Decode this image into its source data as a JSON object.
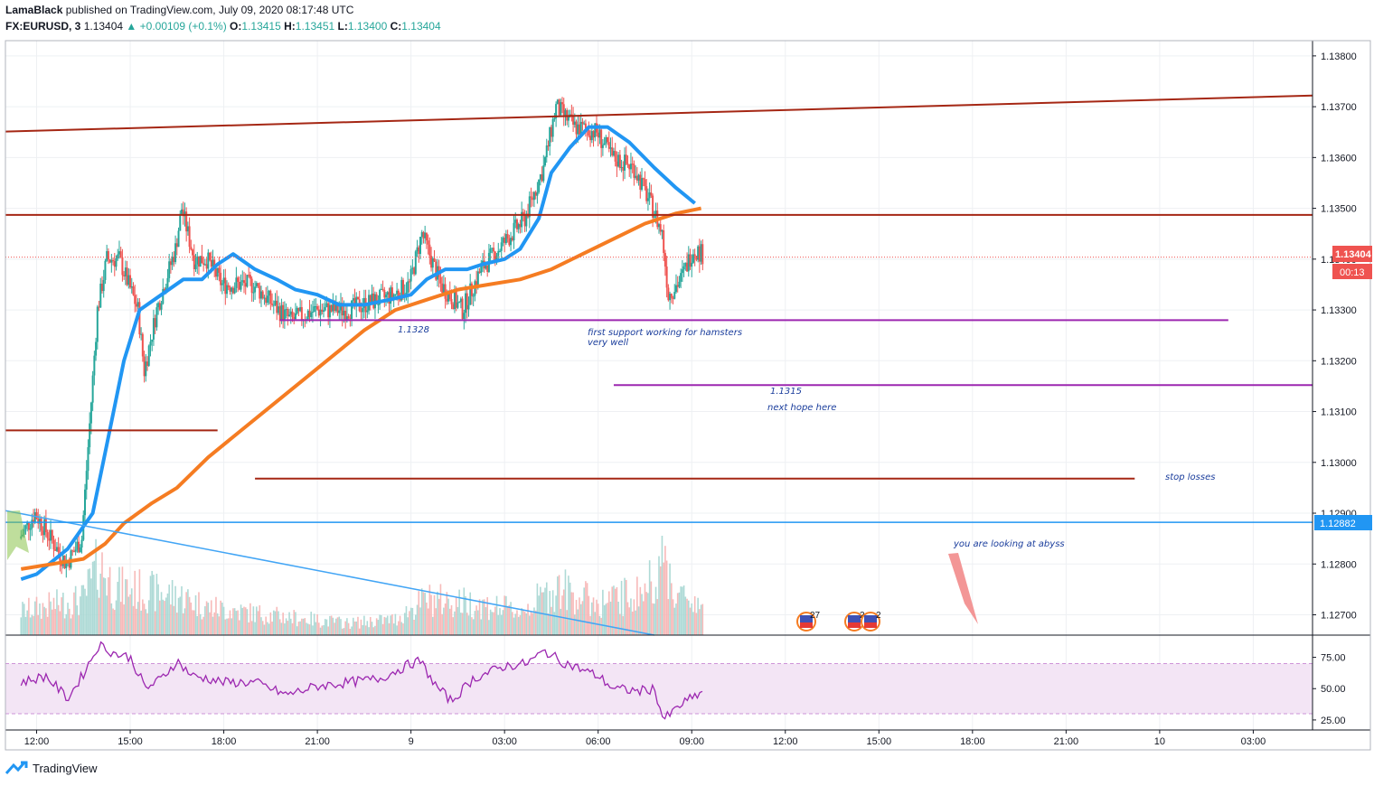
{
  "header": {
    "author": "LamaBlack",
    "published": "published on TradingView.com, July 09, 2020 08:17:48 UTC",
    "symbol": "FX:EURUSD, 3",
    "last": "1.13404",
    "change": "▲ +0.00109 (+0.1%)",
    "o_label": "O:",
    "o_value": "1.13415",
    "h_label": "H:",
    "h_value": "1.13451",
    "l_label": "L:",
    "l_value": "1.13400",
    "c_label": "C:",
    "c_value": "1.13404"
  },
  "footer": {
    "brand": "TradingView"
  },
  "colors": {
    "up": "#26a69a",
    "down": "#ef5350",
    "ma_fast": "#2196f3",
    "ma_slow": "#f57c22",
    "resistance": "#a52714",
    "support": "#9c27b0",
    "trend": "#42a5f5",
    "rsi": "#9c27b0"
  },
  "chart_data": {
    "type": "candlestick",
    "ylim": [
      1.1266,
      1.1383
    ],
    "y_ticks": [
      "1.13800",
      "1.13700",
      "1.13600",
      "1.13500",
      "1.13400",
      "1.13300",
      "1.13200",
      "1.13100",
      "1.13000",
      "1.12900",
      "1.12800",
      "1.12700"
    ],
    "x_ticks": [
      {
        "label": "12:00",
        "t": 0.5
      },
      {
        "label": "15:00",
        "t": 3.5
      },
      {
        "label": "18:00",
        "t": 6.5
      },
      {
        "label": "21:00",
        "t": 9.5
      },
      {
        "label": "9",
        "t": 12.5
      },
      {
        "label": "03:00",
        "t": 15.5
      },
      {
        "label": "06:00",
        "t": 18.5
      },
      {
        "label": "09:00",
        "t": 21.5
      },
      {
        "label": "12:00",
        "t": 24.5
      },
      {
        "label": "15:00",
        "t": 27.5
      },
      {
        "label": "18:00",
        "t": 30.5
      },
      {
        "label": "21:00",
        "t": 33.5
      },
      {
        "label": "10",
        "t": 36.5
      },
      {
        "label": "03:00",
        "t": 39.5
      }
    ],
    "price_path": [
      [
        0,
        1.1285
      ],
      [
        0.5,
        1.129
      ],
      [
        1.5,
        1.128
      ],
      [
        2.0,
        1.1285
      ],
      [
        2.5,
        1.133
      ],
      [
        2.8,
        1.134
      ],
      [
        3.2,
        1.134
      ],
      [
        3.8,
        1.133
      ],
      [
        4.0,
        1.1318
      ],
      [
        4.4,
        1.133
      ],
      [
        5.0,
        1.1342
      ],
      [
        5.2,
        1.135
      ],
      [
        5.6,
        1.134
      ],
      [
        6.0,
        1.134
      ],
      [
        6.5,
        1.1335
      ],
      [
        7.5,
        1.1335
      ],
      [
        8.3,
        1.133
      ],
      [
        8.7,
        1.1328
      ],
      [
        9.5,
        1.133
      ],
      [
        10.5,
        1.133
      ],
      [
        11.5,
        1.1332
      ],
      [
        12.0,
        1.1333
      ],
      [
        12.5,
        1.1335
      ],
      [
        12.9,
        1.1345
      ],
      [
        13.5,
        1.1335
      ],
      [
        14.2,
        1.133
      ],
      [
        14.8,
        1.1338
      ],
      [
        15.5,
        1.1343
      ],
      [
        16.2,
        1.1348
      ],
      [
        16.8,
        1.1358
      ],
      [
        17.2,
        1.137
      ],
      [
        17.8,
        1.1366
      ],
      [
        18.5,
        1.1365
      ],
      [
        19.0,
        1.136
      ],
      [
        19.7,
        1.1358
      ],
      [
        20.3,
        1.135
      ],
      [
        20.6,
        1.1345
      ],
      [
        20.8,
        1.1333
      ],
      [
        21.2,
        1.1336
      ],
      [
        21.6,
        1.1342
      ],
      [
        21.9,
        1.1341
      ]
    ],
    "volume_path": [
      [
        0,
        0.3
      ],
      [
        2.0,
        0.45
      ],
      [
        2.5,
        0.9
      ],
      [
        3.0,
        0.6
      ],
      [
        5.0,
        0.5
      ],
      [
        6.0,
        0.35
      ],
      [
        8.0,
        0.25
      ],
      [
        10.5,
        0.15
      ],
      [
        12.0,
        0.2
      ],
      [
        13.0,
        0.45
      ],
      [
        14.5,
        0.4
      ],
      [
        16.0,
        0.3
      ],
      [
        17.2,
        0.6
      ],
      [
        18.5,
        0.4
      ],
      [
        20.0,
        0.55
      ],
      [
        20.6,
        1.0
      ],
      [
        21.0,
        0.5
      ],
      [
        21.9,
        0.4
      ]
    ],
    "series": [
      {
        "name": "MA fast",
        "points": [
          [
            0,
            1.1277
          ],
          [
            0.5,
            1.1278
          ],
          [
            1.5,
            1.1283
          ],
          [
            2.3,
            1.129
          ],
          [
            2.8,
            1.1305
          ],
          [
            3.3,
            1.132
          ],
          [
            3.8,
            1.133
          ],
          [
            4.5,
            1.1333
          ],
          [
            5.2,
            1.1336
          ],
          [
            5.8,
            1.1336
          ],
          [
            6.3,
            1.1339
          ],
          [
            6.8,
            1.1341
          ],
          [
            7.5,
            1.1338
          ],
          [
            8.2,
            1.1336
          ],
          [
            8.8,
            1.1334
          ],
          [
            9.5,
            1.1333
          ],
          [
            10.2,
            1.1331
          ],
          [
            11.0,
            1.1331
          ],
          [
            11.8,
            1.1332
          ],
          [
            12.5,
            1.1333
          ],
          [
            13.0,
            1.1336
          ],
          [
            13.6,
            1.1338
          ],
          [
            14.3,
            1.1338
          ],
          [
            14.8,
            1.1339
          ],
          [
            15.5,
            1.134
          ],
          [
            16.0,
            1.1342
          ],
          [
            16.6,
            1.1348
          ],
          [
            17.0,
            1.1357
          ],
          [
            17.6,
            1.1362
          ],
          [
            18.2,
            1.1366
          ],
          [
            18.8,
            1.1366
          ],
          [
            19.5,
            1.1363
          ],
          [
            20.3,
            1.1358
          ],
          [
            21.0,
            1.1354
          ],
          [
            21.6,
            1.1351
          ]
        ]
      },
      {
        "name": "MA slow",
        "points": [
          [
            0,
            1.1279
          ],
          [
            1.0,
            1.128
          ],
          [
            2.0,
            1.1281
          ],
          [
            2.7,
            1.1284
          ],
          [
            3.3,
            1.1288
          ],
          [
            4.2,
            1.1292
          ],
          [
            5.0,
            1.1295
          ],
          [
            6.0,
            1.1301
          ],
          [
            7.0,
            1.1306
          ],
          [
            8.0,
            1.1311
          ],
          [
            9.0,
            1.1316
          ],
          [
            10.0,
            1.1321
          ],
          [
            11.0,
            1.1326
          ],
          [
            12.0,
            1.133
          ],
          [
            13.0,
            1.1332
          ],
          [
            14.0,
            1.1334
          ],
          [
            15.0,
            1.1335
          ],
          [
            16.0,
            1.1336
          ],
          [
            17.0,
            1.1338
          ],
          [
            18.0,
            1.1341
          ],
          [
            19.0,
            1.1344
          ],
          [
            20.0,
            1.1347
          ],
          [
            21.0,
            1.1349
          ],
          [
            21.8,
            1.135
          ]
        ]
      }
    ],
    "lines": [
      {
        "name": "channel-top",
        "t1": -0.5,
        "p1": 1.13651,
        "t2": 41.4,
        "p2": 1.13722
      },
      {
        "name": "resistance-1135",
        "t1": -0.5,
        "p1": 1.13487,
        "t2": 41.4,
        "p2": 1.13487
      },
      {
        "name": "resistance-low-left",
        "t1": -0.5,
        "p1": 1.13063,
        "t2": 6.3,
        "p2": 1.13063
      },
      {
        "name": "stop-loss-line",
        "t1": 7.5,
        "p1": 1.12968,
        "t2": 35.7,
        "p2": 1.12968
      },
      {
        "name": "support-11328",
        "t1": 8.3,
        "p1": 1.1328,
        "t2": 38.7,
        "p2": 1.1328
      },
      {
        "name": "support-11315",
        "t1": 19.0,
        "p1": 1.13152,
        "t2": 41.4,
        "p2": 1.13152
      },
      {
        "name": "descending-trend",
        "t1": -0.5,
        "p1": 1.12905,
        "t2": 20.3,
        "p2": 1.1266
      }
    ],
    "annotations": [
      "1.1328",
      "first support working for hamsters",
      "very well",
      "1.1315",
      "next hope here",
      "stop losses",
      "you are looking at abyss"
    ],
    "price_labels": {
      "current": "1.13404",
      "countdown": "00:13",
      "horizontal": "1.12882"
    },
    "events": [
      "27",
      "2",
      "2"
    ],
    "rsi": {
      "ylim": [
        17,
        92
      ],
      "y_ticks": [
        "75.00",
        "50.00",
        "25.00"
      ],
      "band": [
        30,
        70
      ],
      "path": [
        [
          0,
          55
        ],
        [
          0.8,
          60
        ],
        [
          1.5,
          42
        ],
        [
          2.0,
          62
        ],
        [
          2.5,
          85
        ],
        [
          3.0,
          78
        ],
        [
          3.5,
          75
        ],
        [
          4.0,
          50
        ],
        [
          4.5,
          58
        ],
        [
          5.0,
          72
        ],
        [
          5.5,
          60
        ],
        [
          6.0,
          58
        ],
        [
          6.5,
          55
        ],
        [
          7.5,
          55
        ],
        [
          8.0,
          50
        ],
        [
          8.5,
          45
        ],
        [
          9.5,
          52
        ],
        [
          10.5,
          55
        ],
        [
          11.5,
          58
        ],
        [
          12.5,
          70
        ],
        [
          12.8,
          72
        ],
        [
          13.3,
          52
        ],
        [
          13.8,
          40
        ],
        [
          14.5,
          58
        ],
        [
          15.5,
          68
        ],
        [
          16.2,
          70
        ],
        [
          16.8,
          80
        ],
        [
          17.3,
          72
        ],
        [
          18.0,
          65
        ],
        [
          18.5,
          60
        ],
        [
          19.0,
          50
        ],
        [
          19.8,
          48
        ],
        [
          20.3,
          50
        ],
        [
          20.6,
          25
        ],
        [
          21.2,
          38
        ],
        [
          21.9,
          48
        ]
      ]
    }
  }
}
